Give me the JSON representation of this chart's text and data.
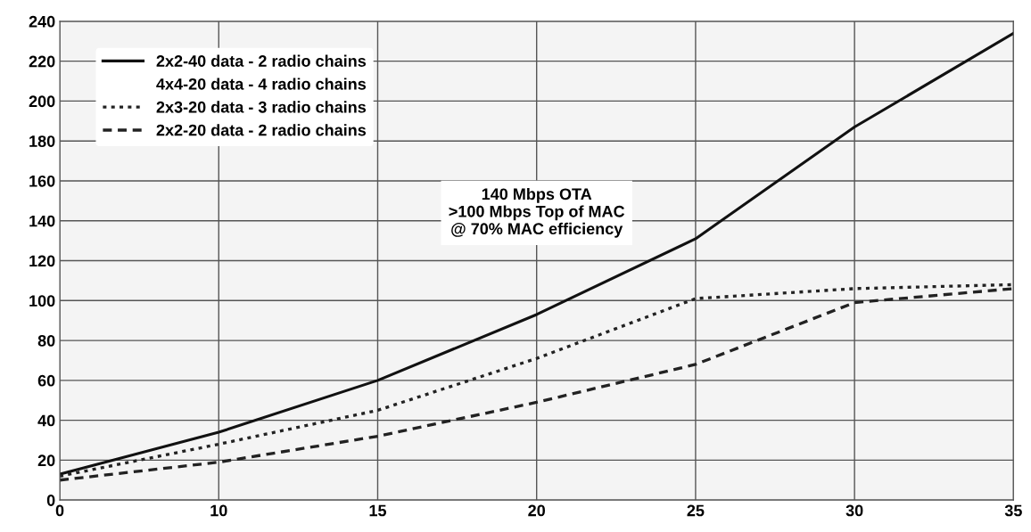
{
  "chart_data": {
    "type": "line",
    "categories": [
      "0",
      "10",
      "15",
      "20",
      "25",
      "30",
      "35"
    ],
    "ylim": [
      0,
      240
    ],
    "yticks": [
      0,
      20,
      40,
      60,
      80,
      100,
      120,
      140,
      160,
      180,
      200,
      220,
      240
    ],
    "grid": true,
    "legend": "top left",
    "series": [
      {
        "name": "2x2-40 data - 2 radio chains",
        "color": "#111111",
        "line_style": "solid",
        "values": [
          13,
          34,
          60,
          93,
          131,
          187,
          234
        ]
      },
      {
        "name": "4x4-20 data - 4 radio chains",
        "values": [
          null,
          null,
          null,
          null,
          null,
          null,
          null
        ]
      },
      {
        "name": "2x3-20 data - 3 radio chains",
        "color": "#222222",
        "line_style": "dotted",
        "values": [
          12,
          28,
          45,
          71,
          101,
          106,
          108
        ]
      },
      {
        "name": "2x2-20 data - 2 radio chains",
        "color": "#222222",
        "line_style": "dashed",
        "values": [
          10,
          19,
          32,
          49,
          68,
          99,
          106
        ]
      }
    ],
    "annotations": [
      "140 Mbps OTA\n>100 Mbps Top of MAC\n@ 70% MAC efficiency"
    ]
  }
}
